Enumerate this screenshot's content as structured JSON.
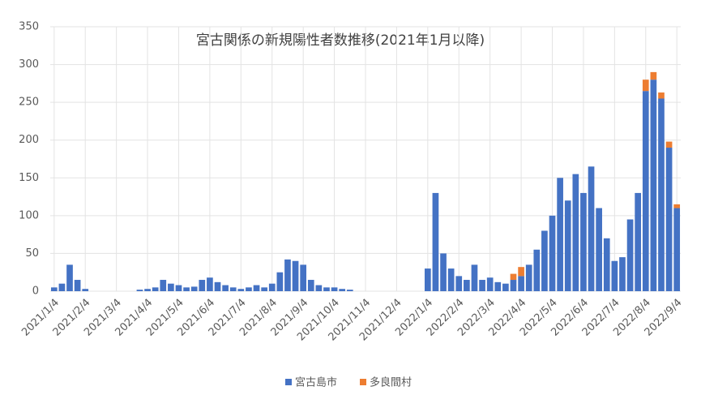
{
  "chart_data": {
    "type": "bar",
    "stacked": true,
    "title": "宮古関係の新規陽性者数推移(2021年1月以降)",
    "categories": [
      "2021/1/4",
      null,
      null,
      null,
      "2021/2/4",
      null,
      null,
      null,
      "2021/3/4",
      null,
      null,
      null,
      "2021/4/4",
      null,
      null,
      null,
      "2021/5/4",
      null,
      null,
      null,
      "2021/6/4",
      null,
      null,
      null,
      "2021/7/4",
      null,
      null,
      null,
      "2021/8/4",
      null,
      null,
      null,
      "2021/9/4",
      null,
      null,
      null,
      "2021/10/4",
      null,
      null,
      null,
      "2021/11/4",
      null,
      null,
      null,
      "2021/12/4",
      null,
      null,
      null,
      "2022/1/4",
      null,
      null,
      null,
      "2022/2/4",
      null,
      null,
      null,
      "2022/3/4",
      null,
      null,
      null,
      "2022/4/4",
      null,
      null,
      null,
      "2022/5/4",
      null,
      null,
      null,
      "2022/6/4",
      null,
      null,
      null,
      "2022/7/4",
      null,
      null,
      null,
      "2022/8/4",
      null,
      null,
      null,
      "2022/9/4"
    ],
    "series": [
      {
        "name": "宮古島市",
        "color": "#4472c4",
        "values": [
          5,
          10,
          35,
          15,
          3,
          0,
          0,
          0,
          0,
          0,
          0,
          2,
          3,
          5,
          15,
          10,
          8,
          5,
          6,
          15,
          18,
          12,
          8,
          5,
          3,
          5,
          8,
          5,
          10,
          25,
          42,
          40,
          35,
          15,
          8,
          5,
          5,
          3,
          2,
          0,
          0,
          0,
          0,
          0,
          0,
          0,
          0,
          0,
          30,
          130,
          50,
          30,
          20,
          15,
          35,
          15,
          18,
          12,
          10,
          15,
          20,
          35,
          55,
          80,
          100,
          150,
          120,
          155,
          130,
          165,
          110,
          70,
          40,
          45,
          95,
          130,
          265,
          280,
          255,
          190,
          110
        ]
      },
      {
        "name": "多良間村",
        "color": "#ed7d31",
        "values": [
          0,
          0,
          0,
          0,
          0,
          0,
          0,
          0,
          0,
          0,
          0,
          0,
          0,
          0,
          0,
          0,
          0,
          0,
          0,
          0,
          0,
          0,
          0,
          0,
          0,
          0,
          0,
          0,
          0,
          0,
          0,
          0,
          0,
          0,
          0,
          0,
          0,
          0,
          0,
          0,
          0,
          0,
          0,
          0,
          0,
          0,
          0,
          0,
          0,
          0,
          0,
          0,
          0,
          0,
          0,
          0,
          0,
          0,
          0,
          8,
          12,
          0,
          0,
          0,
          0,
          0,
          0,
          0,
          0,
          0,
          0,
          0,
          0,
          0,
          0,
          0,
          15,
          10,
          8,
          8,
          5
        ]
      }
    ],
    "ylim": [
      0,
      350
    ],
    "yticks": [
      0,
      50,
      100,
      150,
      200,
      250,
      300,
      350
    ],
    "grid": true,
    "legend": "bottom"
  }
}
